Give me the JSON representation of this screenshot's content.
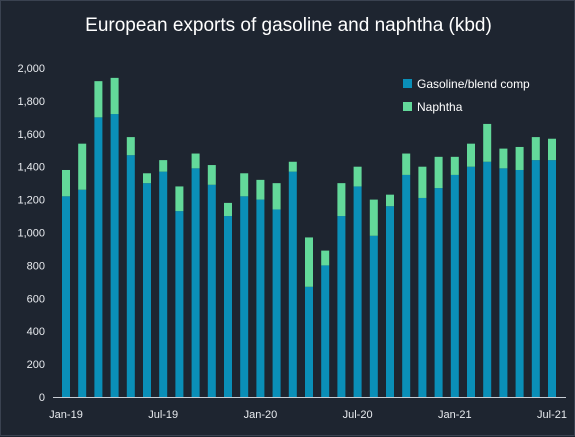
{
  "chart_data": {
    "type": "bar",
    "stacked": true,
    "title": "European exports of gasoline and naphtha (kbd)",
    "xlabel": "",
    "ylabel": "",
    "ylim": [
      0,
      2000
    ],
    "yticks": [
      0,
      200,
      400,
      600,
      800,
      1000,
      1200,
      1400,
      1600,
      1800,
      2000
    ],
    "ytick_labels": [
      "0",
      "200",
      "400",
      "600",
      "800",
      "1,000",
      "1,200",
      "1,400",
      "1,600",
      "1,800",
      "2,000"
    ],
    "xtick_labels": [
      {
        "index": 0,
        "label": "Jan-19"
      },
      {
        "index": 6,
        "label": "Jul-19"
      },
      {
        "index": 12,
        "label": "Jan-20"
      },
      {
        "index": 18,
        "label": "Jul-20"
      },
      {
        "index": 24,
        "label": "Jan-21"
      },
      {
        "index": 30,
        "label": "Jul-21"
      }
    ],
    "categories": [
      "Jan-19",
      "Feb-19",
      "Mar-19",
      "Apr-19",
      "May-19",
      "Jun-19",
      "Jul-19",
      "Aug-19",
      "Sep-19",
      "Oct-19",
      "Nov-19",
      "Dec-19",
      "Jan-20",
      "Feb-20",
      "Mar-20",
      "Apr-20",
      "May-20",
      "Jun-20",
      "Jul-20",
      "Aug-20",
      "Sep-20",
      "Oct-20",
      "Nov-20",
      "Dec-20",
      "Jan-21",
      "Feb-21",
      "Mar-21",
      "Apr-21",
      "May-21",
      "Jun-21",
      "Jul-21"
    ],
    "series": [
      {
        "name": "Gasoline/blend comp",
        "color": "#0a8fb8",
        "values": [
          1220,
          1260,
          1700,
          1720,
          1470,
          1300,
          1370,
          1130,
          1390,
          1290,
          1100,
          1220,
          1200,
          1140,
          1370,
          670,
          800,
          1100,
          1280,
          980,
          1160,
          1350,
          1210,
          1270,
          1350,
          1400,
          1430,
          1390,
          1380,
          1440,
          1440
        ]
      },
      {
        "name": "Naphtha",
        "color": "#63d99a",
        "values": [
          160,
          280,
          220,
          220,
          110,
          60,
          70,
          150,
          90,
          120,
          80,
          140,
          120,
          160,
          60,
          300,
          90,
          200,
          120,
          220,
          70,
          130,
          190,
          190,
          110,
          140,
          230,
          120,
          140,
          140,
          130
        ]
      }
    ],
    "grid": false,
    "legend_position": "top-right"
  }
}
